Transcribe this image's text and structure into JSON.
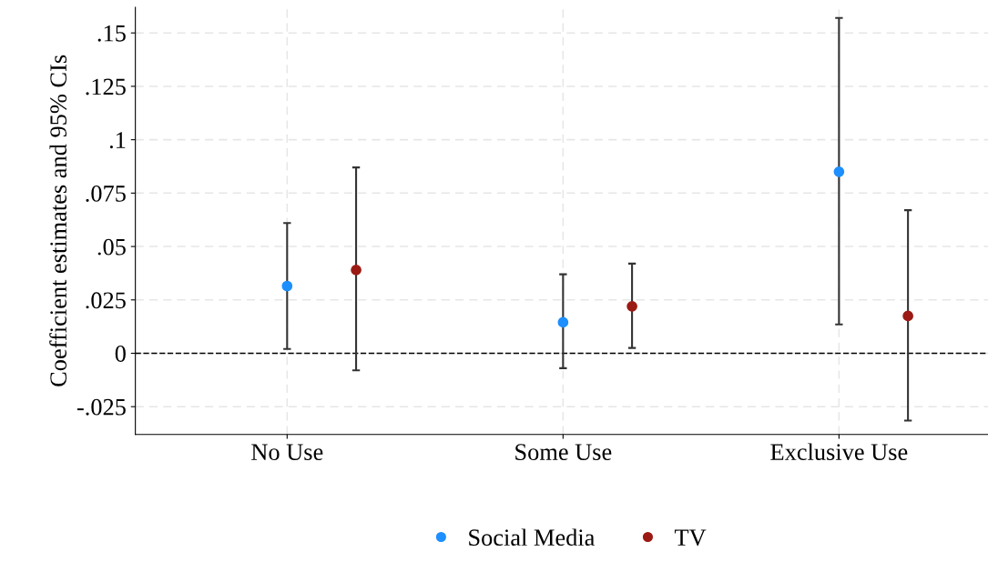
{
  "chart_data": {
    "type": "scatter",
    "ylabel": "Coefficient estimates and 95% CIs",
    "categories": [
      "No Use",
      "Some Use",
      "Exclusive Use"
    ],
    "series": [
      {
        "name": "Social Media",
        "color": "#1e8fff",
        "values": [
          0.0315,
          0.0145,
          0.085
        ],
        "errors": [
          [
            0.002,
            0.061
          ],
          [
            -0.007,
            0.037
          ],
          [
            0.0135,
            0.157
          ]
        ]
      },
      {
        "name": "TV",
        "color": "#9b1b14",
        "values": [
          0.039,
          0.022,
          0.0175
        ],
        "errors": [
          [
            -0.008,
            0.087
          ],
          [
            0.0025,
            0.042
          ],
          [
            -0.0315,
            0.067
          ]
        ]
      }
    ],
    "ylim": [
      -0.038,
      0.162
    ],
    "yticks": [
      {
        "value": -0.025,
        "label": "-.025"
      },
      {
        "value": 0,
        "label": "0"
      },
      {
        "value": 0.025,
        "label": ".025"
      },
      {
        "value": 0.05,
        "label": ".05"
      },
      {
        "value": 0.075,
        "label": ".075"
      },
      {
        "value": 0.1,
        "label": ".1"
      },
      {
        "value": 0.125,
        "label": ".125"
      },
      {
        "value": 0.15,
        "label": ".15"
      }
    ],
    "ref_lines": [
      {
        "axis": "y",
        "value": 0,
        "color": "#000000",
        "line_style": "dashed"
      }
    ],
    "grid": true,
    "legend": "bottom",
    "marker": "circle"
  }
}
